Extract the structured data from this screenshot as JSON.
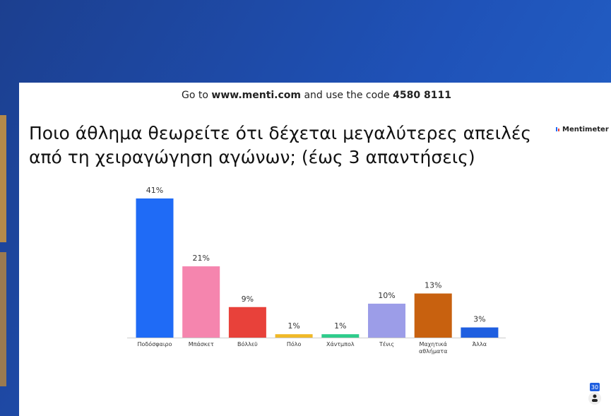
{
  "header": {
    "instruction_prefix": "Go to",
    "url": "www.menti.com",
    "instruction_suffix": "and use the code",
    "code": "4580 8111",
    "brand": "Mentimeter"
  },
  "participant_count": "30",
  "chart_data": {
    "type": "bar",
    "title": [
      "Ποιο άθλημα θεωρείτε ότι δέχεται μεγαλύτερες απειλές",
      "από τη χειραγώγηση αγώνων; (έως 3 απαντήσεις)"
    ],
    "categories": [
      "Ποδόσφαιρο",
      "Μπάσκετ",
      "Βόλλεϋ",
      "Πόλο",
      "Χάντμπολ",
      "Τένις",
      "Μαχητικά αθλήματα",
      "Άλλα"
    ],
    "values": [
      41,
      21,
      9,
      1,
      1,
      10,
      13,
      3
    ],
    "value_labels": [
      "41%",
      "21%",
      "9%",
      "1%",
      "1%",
      "10%",
      "13%",
      "3%"
    ],
    "colors": [
      "#1f6bf6",
      "#f585ae",
      "#e8413a",
      "#f0b928",
      "#2ecc8b",
      "#9c9de8",
      "#c8610f",
      "#1f5fe0"
    ]
  }
}
